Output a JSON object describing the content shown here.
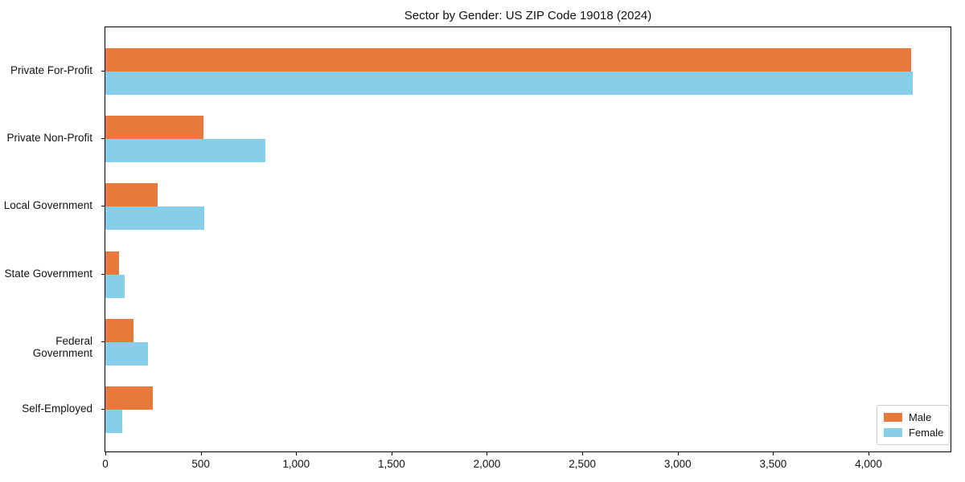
{
  "chart_data": {
    "type": "bar",
    "orientation": "horizontal",
    "title": "Sector by Gender: US ZIP Code 19018 (2024)",
    "categories": [
      "Private For-Profit",
      "Private Non-Profit",
      "Local Government",
      "State Government",
      "Federal Government",
      "Self-Employed"
    ],
    "series": [
      {
        "name": "Male",
        "color": "#e8793d",
        "values": [
          4225,
          515,
          272,
          70,
          146,
          248
        ]
      },
      {
        "name": "Female",
        "color": "#87ceeb",
        "values": [
          4230,
          840,
          517,
          103,
          222,
          88
        ]
      }
    ],
    "xlabel": "",
    "ylabel": "",
    "xlim": [
      0,
      4430
    ],
    "xticks": [
      0,
      500,
      1000,
      1500,
      2000,
      2500,
      3000,
      3500,
      4000
    ],
    "xtick_labels": [
      "0",
      "500",
      "1,000",
      "1,500",
      "2,000",
      "2,500",
      "3,000",
      "3,500",
      "4,000"
    ],
    "grid": false,
    "legend_position": "lower right",
    "background_color": "#ffffff",
    "spine_color": "#000000"
  }
}
